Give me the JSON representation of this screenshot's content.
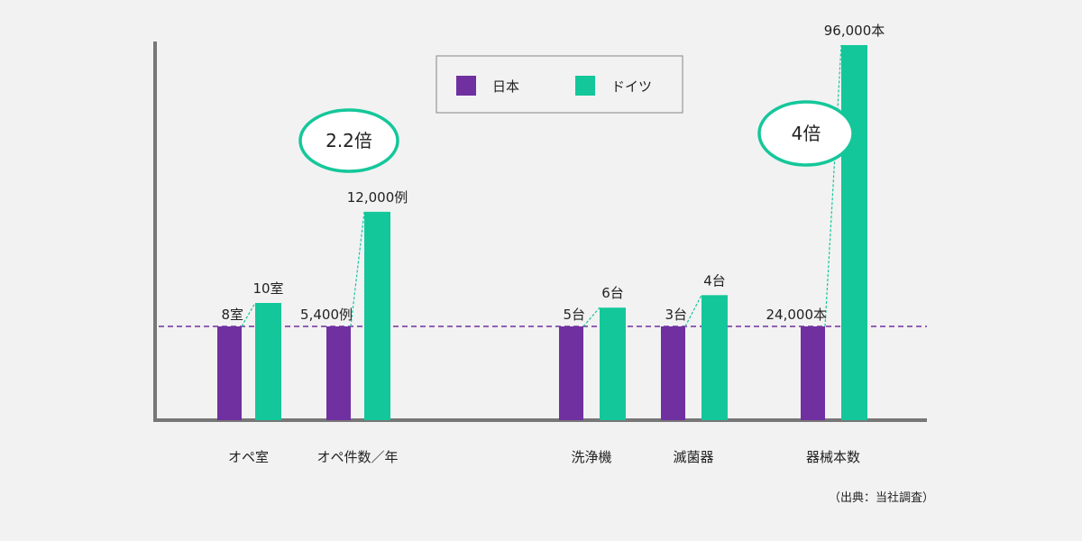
{
  "chart_data": {
    "type": "bar",
    "categories": [
      "オペ室",
      "オペ件数／年",
      "洗浄機",
      "滅菌器",
      "器械本数"
    ],
    "series": [
      {
        "name": "日本",
        "color": "#7030a0",
        "values": [
          8,
          5400,
          5,
          3,
          24000
        ],
        "labels": [
          "8室",
          "5,400例",
          "5台",
          "3台",
          "24,000本"
        ]
      },
      {
        "name": "ドイツ",
        "color": "#14c79a",
        "values": [
          10,
          12000,
          6,
          4,
          96000
        ],
        "labels": [
          "10室",
          "12,000例",
          "6台",
          "4台",
          "96,000本"
        ]
      }
    ],
    "legend_position": "top",
    "annotations": [
      {
        "text": "2.2倍",
        "category": "オペ件数／年"
      },
      {
        "text": "4倍",
        "category": "器械本数"
      }
    ],
    "note": "（出典：当社調査）",
    "axes_visible": true,
    "grid": false
  }
}
